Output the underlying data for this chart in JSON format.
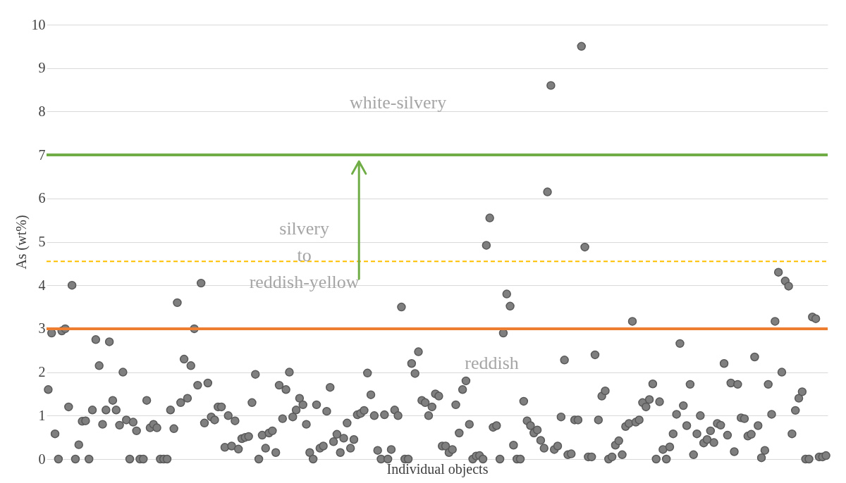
{
  "chart_data": {
    "type": "scatter",
    "xlabel": "Individual objects",
    "ylabel": "As (wt%)",
    "ylim": [
      0,
      10
    ],
    "yticks": [
      0,
      1,
      2,
      3,
      4,
      5,
      6,
      7,
      8,
      9,
      10
    ],
    "grid": "y",
    "tick_labels": "y",
    "marker": "circle",
    "categories": [
      null,
      null,
      null,
      null,
      null,
      null,
      null,
      null,
      null,
      null,
      null,
      null,
      null,
      null,
      null,
      null,
      null,
      null,
      null,
      null,
      null,
      null,
      null,
      null,
      null,
      null,
      null,
      null,
      null,
      null,
      null,
      null,
      null,
      null,
      null,
      null,
      null,
      null,
      null,
      null,
      null,
      null,
      null,
      null,
      null,
      null,
      null,
      null,
      null,
      null,
      null,
      null,
      null,
      null,
      null,
      null,
      null,
      null,
      null,
      null,
      null,
      null,
      null,
      null,
      null,
      null,
      null,
      null,
      null,
      null,
      null,
      null,
      null,
      null,
      null,
      null,
      null,
      null,
      null,
      null,
      null,
      null,
      null,
      null,
      null,
      null,
      null,
      null,
      null,
      null,
      null,
      null,
      null,
      null,
      null,
      null,
      null,
      null,
      null,
      null,
      null,
      null,
      null,
      null,
      null,
      null,
      null,
      null,
      null,
      null,
      null,
      null,
      null,
      null,
      null,
      null,
      null,
      null,
      null,
      null,
      null,
      null,
      null,
      null,
      null,
      null,
      null,
      null,
      null,
      null,
      null,
      null,
      null,
      null,
      null,
      null,
      null,
      null,
      null,
      null,
      null,
      null,
      null,
      null,
      null,
      null,
      null,
      null,
      null,
      null,
      null,
      null,
      null,
      null,
      null,
      null,
      null,
      null,
      null,
      null,
      null,
      null,
      null,
      null,
      null,
      null,
      null,
      null,
      null,
      null,
      null,
      null,
      null,
      null,
      null,
      null,
      null,
      null,
      null,
      null,
      null,
      null,
      null,
      null,
      null,
      null,
      null,
      null,
      null,
      null,
      null,
      null,
      null,
      null,
      null,
      null,
      null,
      null,
      null,
      null,
      null,
      null,
      null,
      null,
      null,
      null,
      null,
      null,
      null,
      null,
      null,
      null,
      null,
      null,
      null,
      null,
      null,
      null,
      null,
      null,
      null,
      null,
      null,
      null,
      null,
      null,
      null,
      null,
      null,
      null
    ],
    "series": [
      {
        "color": "#7f7f7f",
        "values": [
          1.6,
          2.9,
          0.58,
          0,
          2.95,
          3.0,
          1.2,
          4.0,
          0,
          0.33,
          0.87,
          0.88,
          0,
          1.13,
          2.75,
          2.15,
          0.8,
          1.13,
          2.7,
          1.35,
          1.13,
          0.78,
          2.0,
          0.9,
          0,
          0.85,
          0.65,
          0,
          0,
          1.35,
          0.72,
          0.8,
          0.72,
          0,
          0,
          0,
          1.13,
          0.7,
          3.6,
          1.3,
          2.3,
          1.4,
          2.15,
          3.0,
          1.7,
          4.05,
          0.83,
          1.75,
          0.97,
          0.9,
          1.2,
          1.2,
          0.27,
          1.0,
          0.3,
          0.88,
          0.23,
          0.47,
          0.5,
          0.52,
          1.3,
          1.95,
          0,
          0.55,
          0.25,
          0.6,
          0.65,
          0.15,
          1.7,
          0.93,
          1.6,
          2.0,
          0.97,
          1.13,
          1.4,
          1.25,
          0.8,
          0.15,
          0,
          1.25,
          0.25,
          0.3,
          1.1,
          1.65,
          0.4,
          0.57,
          0.15,
          0.48,
          0.83,
          0.25,
          0.45,
          1.02,
          1.05,
          1.12,
          1.98,
          1.48,
          1.0,
          0.2,
          0,
          1.02,
          0,
          0.22,
          1.13,
          1.0,
          3.5,
          0,
          0,
          2.2,
          1.97,
          2.47,
          1.35,
          1.3,
          1.0,
          1.2,
          1.5,
          1.45,
          0.3,
          0.3,
          0.15,
          0.22,
          1.25,
          0.6,
          1.6,
          1.8,
          0.8,
          0,
          0.07,
          0.08,
          0,
          4.92,
          5.55,
          0.73,
          0.77,
          0,
          2.9,
          3.8,
          3.52,
          0.32,
          0,
          0,
          1.33,
          0.88,
          0.77,
          0.6,
          0.67,
          0.43,
          0.25,
          6.15,
          8.6,
          0.22,
          0.3,
          0.97,
          2.28,
          0.1,
          0.12,
          0.9,
          0.9,
          9.5,
          4.88,
          0.05,
          0.05,
          2.4,
          0.9,
          1.45,
          1.57,
          0,
          0.05,
          0.32,
          0.42,
          0.1,
          0.75,
          0.82,
          3.17,
          0.85,
          0.9,
          1.3,
          1.2,
          1.37,
          1.73,
          0,
          1.32,
          0.22,
          0,
          0.28,
          0.58,
          1.03,
          2.66,
          1.23,
          0.77,
          1.72,
          0.1,
          0.58,
          1.0,
          0.37,
          0.45,
          0.65,
          0.38,
          0.82,
          0.78,
          2.2,
          0.55,
          1.75,
          0.17,
          1.72,
          0.95,
          0.93,
          0.53,
          0.57,
          2.35,
          0.77,
          0.03,
          0.2,
          1.72,
          1.03,
          3.17,
          4.3,
          2.0,
          4.1,
          3.98,
          0.58,
          1.12,
          1.4,
          1.55,
          0,
          0,
          3.27,
          3.23,
          0.05,
          0.05,
          0.08
        ]
      }
    ],
    "ref_lines": [
      {
        "axis": "y",
        "value": 7,
        "color": "#70ad47",
        "line_style": "solid"
      },
      {
        "axis": "y",
        "value": 3,
        "color": "#ed7d31",
        "line_style": "solid"
      },
      {
        "axis": "y",
        "value": 4.55,
        "color": "#ffc000",
        "line_style": "dashed"
      }
    ],
    "annotations": [
      "white-silvery",
      "silvery\nto\nreddish-yellow",
      "reddish"
    ]
  }
}
